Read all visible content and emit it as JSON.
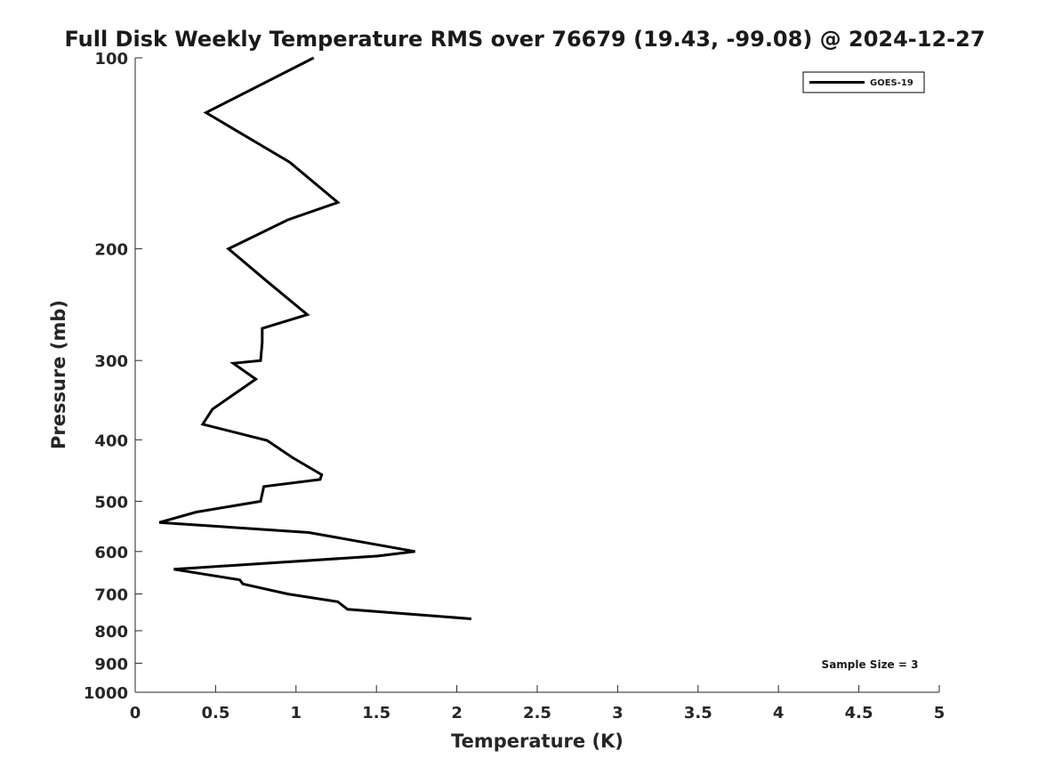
{
  "chart_data": {
    "type": "line",
    "title": "Full Disk Weekly Temperature RMS over 76679 (19.43, -99.08) @ 2024-12-27",
    "xlabel": "Temperature (K)",
    "ylabel": "Pressure (mb)",
    "xlim": [
      0,
      5
    ],
    "ylim": [
      100,
      1000
    ],
    "y_scale": "log",
    "y_inverted": true,
    "grid": false,
    "legend_position": "top-right",
    "x_ticks": [
      "0",
      "0.5",
      "1",
      "1.5",
      "2",
      "2.5",
      "3",
      "3.5",
      "4",
      "4.5",
      "5"
    ],
    "y_ticks": [
      "100",
      "200",
      "300",
      "400",
      "500",
      "600",
      "700",
      "800",
      "900",
      "1000"
    ],
    "annotation": "Sample Size = 3",
    "series": [
      {
        "name": "GOES-19",
        "color": "#000000",
        "x": [
          1.11,
          0.44,
          0.96,
          1.26,
          0.95,
          0.58,
          0.81,
          1.07,
          0.79,
          0.79,
          0.78,
          0.61,
          0.75,
          0.48,
          0.42,
          0.82,
          0.98,
          1.16,
          1.15,
          0.8,
          0.78,
          0.38,
          0.15,
          1.08,
          1.74,
          1.51,
          0.24,
          0.65,
          0.67,
          0.95,
          1.26,
          1.32,
          2.09
        ],
        "y": [
          100,
          122,
          146,
          169,
          180,
          200,
          224,
          254,
          267,
          281,
          300,
          303,
          321,
          358,
          378,
          401,
          427,
          454,
          462,
          474,
          500,
          520,
          540,
          560,
          600,
          610,
          640,
          665,
          675,
          700,
          720,
          740,
          766
        ]
      }
    ]
  }
}
